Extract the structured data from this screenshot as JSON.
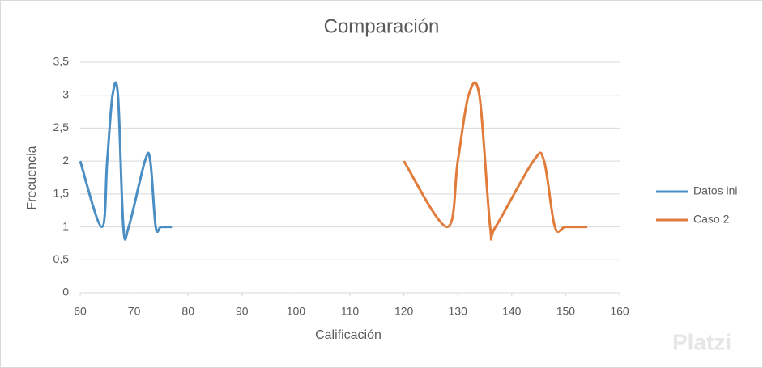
{
  "chart_data": {
    "type": "line",
    "title": "Comparación",
    "xlabel": "Calificación",
    "ylabel": "Frecuencia",
    "xlim": [
      60,
      160
    ],
    "xticks": [
      60,
      70,
      80,
      90,
      100,
      110,
      120,
      130,
      140,
      150,
      160
    ],
    "ylim": [
      0,
      3.5
    ],
    "yticks": [
      0,
      {
        "value": 0.5,
        "label": "0,5"
      },
      1,
      {
        "value": 1.5,
        "label": "1,5"
      },
      2,
      {
        "value": 2.5,
        "label": "2,5"
      },
      3,
      {
        "value": 3.5,
        "label": "3,5"
      }
    ],
    "grid": true,
    "smooth": true,
    "legend": "right",
    "series": [
      {
        "name": "Datos ini",
        "color": "#4a8ec4",
        "x": [
          60,
          64,
          65,
          66,
          67,
          68,
          69,
          72,
          73,
          74,
          75,
          77
        ],
        "values": [
          2,
          1,
          2,
          3,
          3,
          1,
          1,
          2,
          2,
          1,
          1,
          1
        ]
      },
      {
        "name": "Caso 2",
        "color": "#e07b39",
        "x": [
          120,
          128,
          130,
          132,
          134,
          136,
          137,
          144,
          146,
          148,
          150,
          154
        ],
        "values": [
          2,
          1,
          2,
          3,
          3,
          1,
          1,
          2,
          2,
          1,
          1,
          1
        ]
      }
    ],
    "watermark": "Platzi"
  }
}
